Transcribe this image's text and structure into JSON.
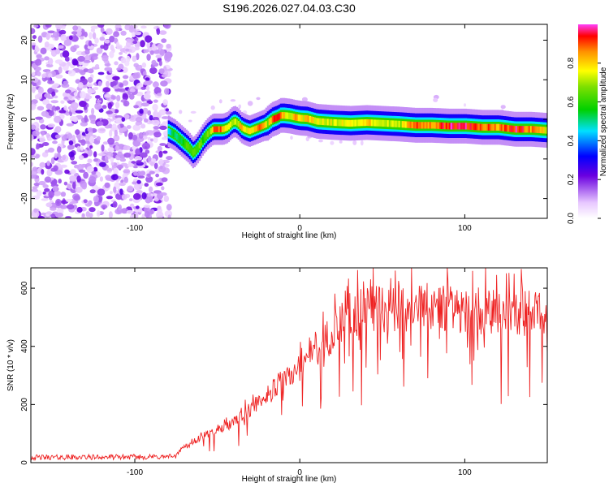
{
  "title": "S196.2026.027.04.03.C30",
  "chart_data": [
    {
      "type": "heatmap",
      "xlabel": "Height of straight line (km)",
      "ylabel": "Frequency (Hz)",
      "xlim": [
        -163,
        150
      ],
      "ylim": [
        -25,
        24
      ],
      "xticks": [
        -100,
        0,
        100
      ],
      "yticks": [
        -20,
        -10,
        0,
        10,
        20
      ],
      "noise_region_x": [
        -163,
        -80
      ],
      "ridge": {
        "x": [
          -80,
          -76,
          -72,
          -68,
          -65,
          -62,
          -59,
          -56,
          -53,
          -50,
          -47,
          -44,
          -42,
          -40,
          -38,
          -36,
          -34,
          -31,
          -28,
          -25,
          -22,
          -20,
          -17,
          -14,
          -12,
          -10,
          -6,
          -3,
          0,
          4,
          10,
          20,
          30,
          40,
          50,
          60,
          70,
          80,
          90,
          100,
          110,
          120,
          130,
          140,
          150
        ],
        "y": [
          -3,
          -4,
          -5.5,
          -7,
          -8.5,
          -7,
          -5,
          -3.5,
          -2.5,
          -2.5,
          -2.5,
          -2,
          -1,
          -0.5,
          -1,
          -2,
          -2.5,
          -3,
          -2.5,
          -2,
          -1.5,
          -1,
          0,
          0.5,
          1,
          1,
          0.8,
          0.5,
          0.3,
          0.2,
          -0.5,
          -0.8,
          -1,
          -0.8,
          -1,
          -1.2,
          -1.5,
          -1.5,
          -1.7,
          -1.7,
          -2,
          -2,
          -2.5,
          -2.5,
          -2.8
        ],
        "width": [
          1.8,
          1.8,
          1.8,
          1.8,
          1.8,
          1.8,
          1.8,
          1.8,
          1.8,
          1.8,
          1.8,
          1.8,
          1.8,
          1.8,
          1.8,
          1.8,
          1.8,
          1.8,
          1.8,
          1.8,
          1.8,
          2,
          2,
          2,
          2,
          2,
          2,
          2,
          2,
          2,
          2,
          2,
          2,
          2,
          2,
          2,
          2,
          2,
          2,
          2,
          2,
          2,
          2,
          2,
          2
        ],
        "amplitude": [
          0.45,
          0.5,
          0.55,
          0.6,
          0.7,
          0.65,
          0.6,
          0.65,
          0.85,
          0.9,
          0.85,
          0.75,
          0.7,
          0.7,
          0.75,
          0.85,
          0.8,
          0.75,
          0.8,
          0.85,
          0.8,
          0.7,
          0.9,
          0.95,
          0.85,
          0.8,
          0.75,
          0.85,
          0.75,
          0.8,
          0.75,
          0.75,
          0.75,
          0.8,
          0.75,
          0.7,
          0.9,
          0.85,
          0.95,
          0.95,
          0.9,
          0.85,
          0.95,
          0.85,
          0.75
        ],
        "background_amplitude": 0.3
      },
      "colorbar": {
        "label": "Normalized spectral amplitude",
        "range": [
          0,
          1
        ],
        "ticks": [
          "0.0",
          "0.2",
          "0.4",
          "0.6",
          "0.8"
        ]
      }
    },
    {
      "type": "line",
      "xlabel": "Height of straight line (km)",
      "ylabel": "SNR (10 * v/v)",
      "xlim": [
        -163,
        150
      ],
      "ylim": [
        0,
        670
      ],
      "xticks": [
        -100,
        0,
        100
      ],
      "yticks": [
        0,
        200,
        400,
        600
      ],
      "color": "#ee2222",
      "envelope": {
        "x": [
          -163,
          -80,
          -75,
          -70,
          -60,
          -50,
          -40,
          -30,
          -20,
          -10,
          0,
          10,
          20,
          30,
          40,
          50,
          60,
          80,
          100,
          120,
          150
        ],
        "y": [
          18,
          20,
          25,
          60,
          90,
          110,
          140,
          190,
          240,
          290,
          340,
          400,
          460,
          520,
          545,
          550,
          550,
          545,
          540,
          535,
          530
        ]
      }
    }
  ]
}
